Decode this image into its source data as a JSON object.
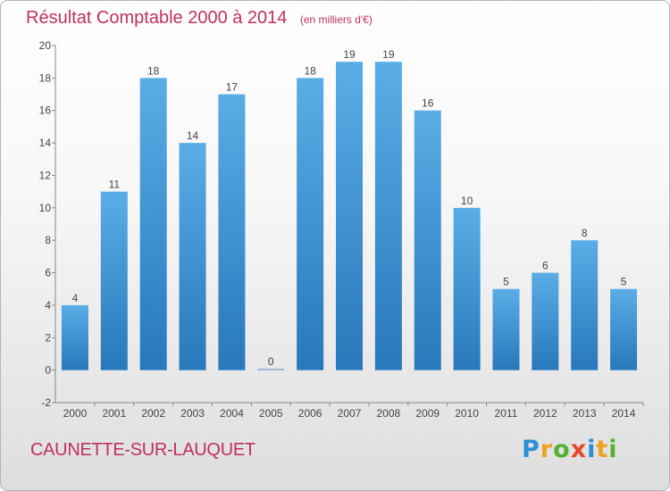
{
  "chart_data": {
    "type": "bar",
    "title": "Résultat Comptable 2000 à 2014",
    "unit": "(en milliers d'€)",
    "categories": [
      "2000",
      "2001",
      "2002",
      "2003",
      "2004",
      "2005",
      "2006",
      "2007",
      "2008",
      "2009",
      "2010",
      "2011",
      "2012",
      "2013",
      "2014"
    ],
    "values": [
      4,
      11,
      18,
      14,
      17,
      0,
      18,
      19,
      19,
      16,
      10,
      5,
      6,
      8,
      5
    ],
    "ylim": [
      -2,
      20
    ],
    "yticks": [
      -2,
      0,
      2,
      4,
      6,
      8,
      10,
      12,
      14,
      16,
      18,
      20
    ],
    "grid": false,
    "bar_color_top": "#5aade6",
    "bar_color_bottom": "#2878bb"
  },
  "footer": {
    "town": "CAUNETTE-SUR-LAUQUET",
    "brand_letters": [
      "P",
      "r",
      "o",
      "x",
      "i",
      "t",
      "i"
    ],
    "brand_colors": [
      "#2b8fd6",
      "#f0a020",
      "#55b030",
      "#e84a2a",
      "#2b8fd6",
      "#f0a020",
      "#55b030"
    ]
  }
}
